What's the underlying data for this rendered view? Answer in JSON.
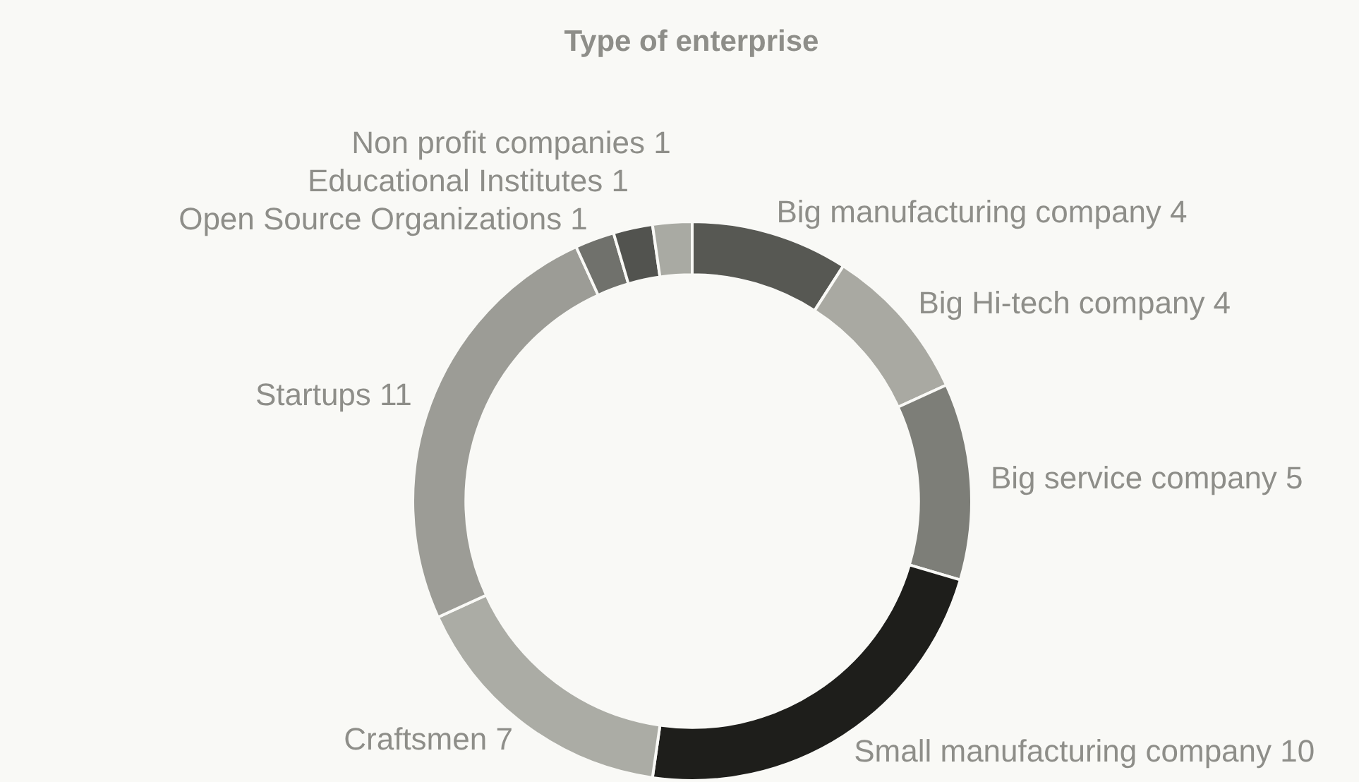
{
  "chart_data": {
    "type": "donut",
    "title": "Type of enterprise",
    "categories": [
      "Big manufacturing company",
      "Big Hi-tech company",
      "Big service company",
      "Small manufacturing company",
      "Craftsmen",
      "Startups",
      "Open Source Organizations",
      "Educational Institutes",
      "Non profit companies"
    ],
    "values": [
      4,
      4,
      5,
      10,
      7,
      11,
      1,
      1,
      1
    ],
    "colors": [
      "#575853",
      "#a9a9a2",
      "#7d7e78",
      "#1e1e1b",
      "#abaca5",
      "#9c9c96",
      "#70716c",
      "#52534f",
      "#a9aaa3"
    ],
    "data_labels": true,
    "legend": false
  }
}
